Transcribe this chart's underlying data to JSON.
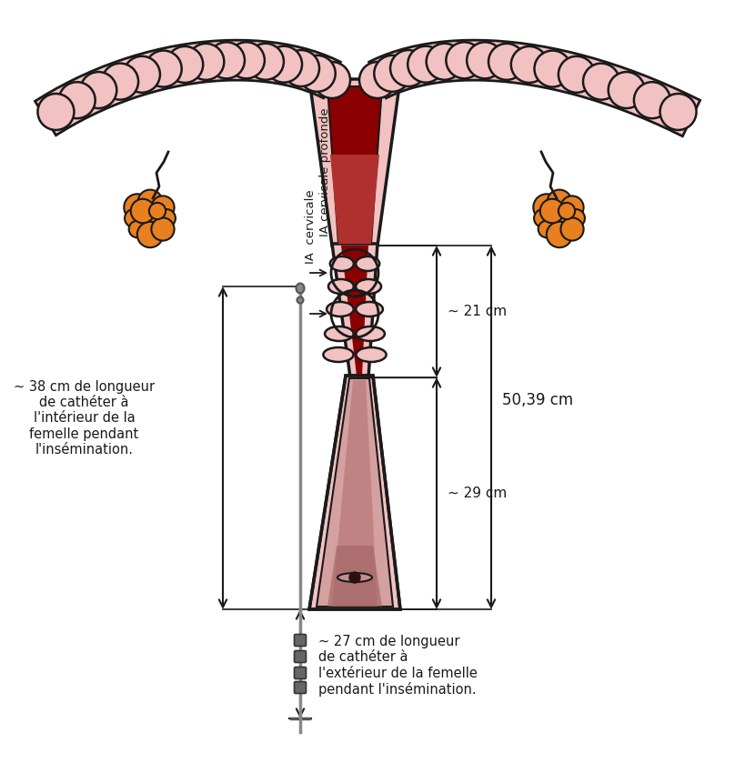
{
  "bg_color": "#ffffff",
  "pink_light": "#f2c2c2",
  "pink_mid": "#e8a8a8",
  "pink_dark": "#d08888",
  "pink_outline": "#1a1a1a",
  "dark_red": "#8b0000",
  "mid_red": "#b03030",
  "vagina_fill": "#d4a0a0",
  "vagina_shad": "#b87878",
  "gray_cath": "#888888",
  "gray_dark": "#555555",
  "orange": "#e88020",
  "black": "#1a1a1a",
  "label_38": "~ 38 cm de longueur\nde cathéter à\nl'intérieur de la\nfemelle pendant\nl'insémination.",
  "label_27": "~ 27 cm de longueur\nde cathéter à\nl'extérieur de la femelle\npendant l'insémination.",
  "label_21": "~ 21 cm",
  "label_29": "~ 29 cm",
  "label_5039": "50,39 cm",
  "label_IA_cerv": "IA\ncervicale",
  "label_IA_prof": "IA cervicale\nprofonde"
}
